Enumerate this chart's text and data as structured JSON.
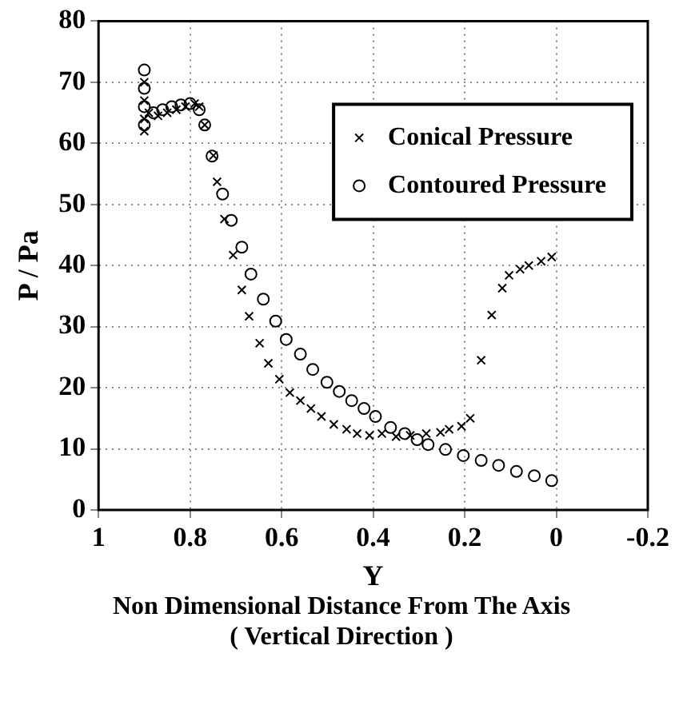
{
  "chart_data": {
    "type": "scatter",
    "xlabel": "Y",
    "ylabel": "P / Pa",
    "annotations": [
      "Non Dimensional Distance From The Axis ( Vertical Direction )"
    ],
    "xlim": [
      1,
      -0.2
    ],
    "xticks": [
      1,
      0.8,
      0.6,
      0.4,
      0.2,
      0,
      -0.2
    ],
    "ylim": [
      0,
      80
    ],
    "yticks": [
      0,
      10,
      20,
      30,
      40,
      50,
      60,
      70,
      80
    ],
    "grid": true,
    "legend": "top right",
    "series": [
      {
        "name": "Conical Pressure",
        "color": "#000000",
        "marker": "cross",
        "x": [
          0.9,
          0.9,
          0.9,
          0.9,
          0.89,
          0.87,
          0.85,
          0.83,
          0.81,
          0.79,
          0.78,
          0.768,
          0.749,
          0.741,
          0.725,
          0.706,
          0.687,
          0.671,
          0.648,
          0.629,
          0.605,
          0.582,
          0.559,
          0.536,
          0.513,
          0.486,
          0.458,
          0.435,
          0.408,
          0.381,
          0.35,
          0.319,
          0.284,
          0.253,
          0.234,
          0.207,
          0.188,
          0.164,
          0.141,
          0.118,
          0.103,
          0.079,
          0.06,
          0.033,
          0.01
        ],
        "values": [
          70,
          67,
          64,
          62,
          65,
          64.5,
          65,
          65.5,
          66,
          66.5,
          66,
          63,
          58,
          53.7,
          47.6,
          41.7,
          36,
          31.7,
          27.3,
          24,
          21.4,
          19.2,
          17.9,
          16.6,
          15.3,
          14,
          13.2,
          12.5,
          12.2,
          12.5,
          12,
          12.2,
          12.5,
          12.7,
          13.2,
          13.7,
          15,
          24.5,
          31.9,
          36.3,
          38.4,
          39.4,
          40,
          40.7,
          41.4
        ]
      },
      {
        "name": "Contoured Pressure",
        "color": "#000000",
        "marker": "circle",
        "x": [
          0.9,
          0.9,
          0.9,
          0.9,
          0.88,
          0.86,
          0.84,
          0.82,
          0.8,
          0.78,
          0.768,
          0.752,
          0.729,
          0.71,
          0.687,
          0.667,
          0.64,
          0.613,
          0.59,
          0.559,
          0.532,
          0.501,
          0.474,
          0.447,
          0.42,
          0.395,
          0.362,
          0.331,
          0.304,
          0.28,
          0.242,
          0.203,
          0.164,
          0.126,
          0.087,
          0.048,
          0.01
        ],
        "values": [
          72,
          69,
          66,
          63,
          65,
          65.5,
          66,
          66.3,
          66.5,
          65.5,
          63,
          57.9,
          51.7,
          47.4,
          43,
          38.6,
          34.5,
          30.9,
          27.9,
          25.5,
          23,
          20.9,
          19.4,
          17.9,
          16.6,
          15.3,
          13.5,
          12.5,
          11.5,
          10.7,
          9.9,
          8.9,
          8.1,
          7.3,
          6.3,
          5.6,
          4.8
        ]
      }
    ]
  }
}
